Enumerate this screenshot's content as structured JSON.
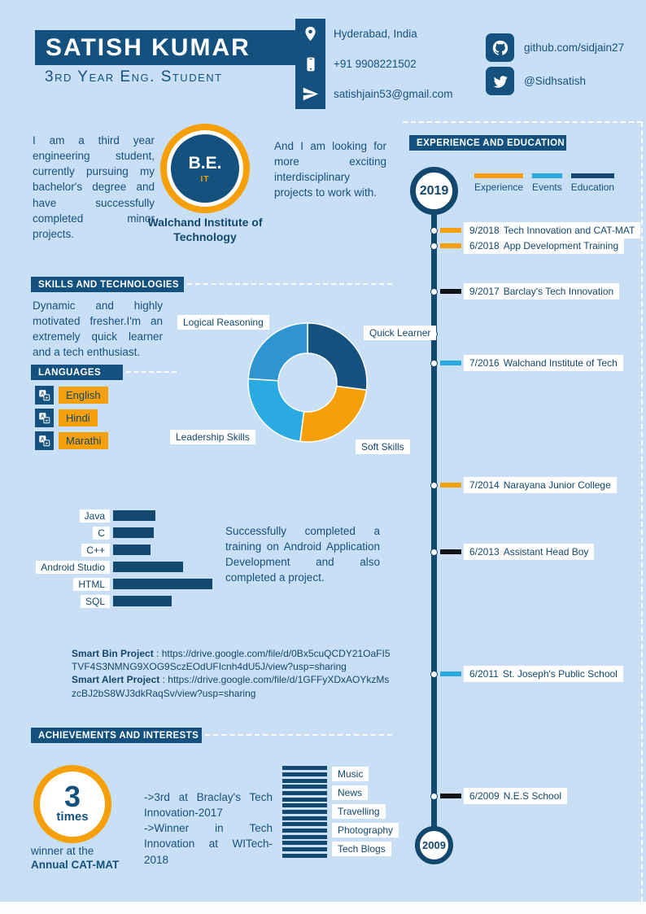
{
  "palette": {
    "background": "#C9DFF5",
    "primary": "#15517E",
    "navy": "#12476E",
    "orange": "#F5A008",
    "sky": "#29ABE2"
  },
  "header": {
    "name": "SATISH KUMAR",
    "subtitle": "3rd Year Eng. Student",
    "contacts": [
      {
        "icon": "location-pin-icon",
        "text": "Hyderabad, India"
      },
      {
        "icon": "phone-icon",
        "text": "+91 9908221502"
      },
      {
        "icon": "paper-plane-icon",
        "text": "satishjain53@gmail.com"
      }
    ],
    "social": [
      {
        "icon": "github-icon",
        "text": "github.com/sidjain27"
      },
      {
        "icon": "twitter-icon",
        "text": "@Sidhsatish"
      }
    ]
  },
  "about": {
    "intro_left": "I am a third year engineering student, currently pursuing my bachelor's degree and have successfully completed minor projects.",
    "intro_right": "And I am looking for more exciting interdisciplinary projects to work with.",
    "degree_badge": {
      "degree": "B.E.",
      "branch": "IT",
      "institution": "Walchand Institute of Technology"
    }
  },
  "experience": {
    "title": "EXPERIENCE AND EDUCATION",
    "start_year": "2019",
    "end_year": "2009",
    "legend": [
      {
        "label": "Experience",
        "color": "#F5A008"
      },
      {
        "label": "Events",
        "color": "#29ABE2"
      },
      {
        "label": "Education",
        "color": "#12476E"
      }
    ],
    "items": [
      {
        "date": "9/2018",
        "label": "Tech Innovation and CAT-MAT",
        "tick_color": "#F5A008"
      },
      {
        "date": "6/2018",
        "label": "App Development Training",
        "tick_color": "#F5A008"
      },
      {
        "date": "9/2017",
        "label": "Barclay's Tech Innovation",
        "tick_color": "#101418"
      },
      {
        "date": "7/2016",
        "label": "Walchand Institute of Tech",
        "tick_color": "#29ABE2"
      },
      {
        "date": "7/2014",
        "label": "Narayana Junior College",
        "tick_color": "#F5A008"
      },
      {
        "date": "6/2013",
        "label": "Assistant Head Boy",
        "tick_color": "#101418"
      },
      {
        "date": "6/2011",
        "label": "St. Joseph's Public School",
        "tick_color": "#29ABE2"
      },
      {
        "date": "6/2009",
        "label": "N.E.S School",
        "tick_color": "#101418"
      }
    ]
  },
  "skills": {
    "title": "SKILLS AND TECHNOLOGIES",
    "summary": "Dynamic and highly motivated fresher.I'm an extremely quick learner and a tech enthusiast.",
    "donut": {
      "type": "pie",
      "segments": [
        {
          "label": "Quick Learner",
          "value": 27,
          "color": "#15517E"
        },
        {
          "label": "Soft Skills",
          "value": 25,
          "color": "#F5A008"
        },
        {
          "label": "Leadership Skills",
          "value": 24,
          "color": "#29ABE2"
        },
        {
          "label": "Logical Reasoning",
          "value": 24,
          "color": "#2E95D2"
        }
      ]
    },
    "bars": {
      "type": "bar",
      "categories": [
        "Java",
        "C",
        "C++",
        "Android Studio",
        "HTML",
        "SQL"
      ],
      "values": [
        52,
        50,
        46,
        86,
        122,
        72
      ]
    },
    "android_note": "Successfully completed a training on Android Application Development and also completed a project."
  },
  "languages": {
    "title": "LANGUAGES",
    "icon": "translate-icon",
    "items": [
      "English",
      "Hindi",
      "Marathi"
    ]
  },
  "projects": {
    "items": [
      {
        "name": "Smart Bin Project",
        "url": "https://drive.google.com/file/d/0Bx5cuQCDY21OaFI5TVF4S3NMNG9XOG9SczEOdUFIcnh4dU5J/view?usp=sharing"
      },
      {
        "name": "Smart Alert Project",
        "url": "https://drive.google.com/file/d/1GFFyXDxAOYkzMszcBJ2bS8WJ3dkRaqSv/view?usp=sharing"
      }
    ]
  },
  "achievements": {
    "title": "ACHIEVEMENTS AND INTERESTS",
    "badge": {
      "count": "3",
      "unit": "times",
      "caption_line1": "winner at the",
      "caption_line2": "Annual CAT-MAT"
    },
    "lines": [
      "->3rd at Braclay's Tech Innovation-2017",
      "->Winner in Tech Innovation at WITech-2018"
    ],
    "interests": [
      "Music",
      "News",
      "Travelling",
      "Photography",
      "Tech Blogs"
    ]
  }
}
